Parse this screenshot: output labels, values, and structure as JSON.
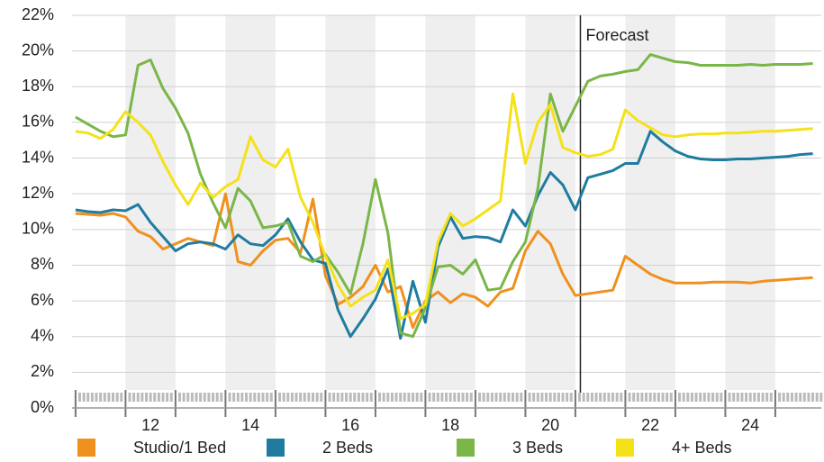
{
  "chart_data": {
    "type": "line",
    "x": [
      11,
      11.25,
      11.5,
      11.75,
      12,
      12.25,
      12.5,
      12.75,
      13,
      13.25,
      13.5,
      13.75,
      14,
      14.25,
      14.5,
      14.75,
      15,
      15.25,
      15.5,
      15.75,
      16,
      16.25,
      16.5,
      16.75,
      17,
      17.25,
      17.5,
      17.75,
      18,
      18.25,
      18.5,
      18.75,
      19,
      19.25,
      19.5,
      19.75,
      20,
      20.25,
      20.5,
      20.75,
      21,
      21.25,
      21.5,
      21.75,
      22,
      22.25,
      22.5,
      22.75,
      23,
      23.25,
      23.5,
      23.75,
      24,
      24.25,
      24.5,
      24.75,
      25,
      25.25,
      25.5,
      25.75
    ],
    "series": [
      {
        "name": "Studio/1 Bed",
        "color": "#f0901e",
        "values": [
          10.9,
          10.85,
          10.8,
          10.9,
          10.7,
          9.9,
          9.6,
          8.9,
          9.2,
          9.5,
          9.3,
          9.1,
          12.0,
          8.2,
          8.0,
          8.8,
          9.4,
          9.5,
          8.7,
          11.7,
          7.4,
          5.8,
          6.2,
          6.8,
          8.0,
          6.5,
          6.8,
          4.5,
          6.0,
          6.5,
          5.9,
          6.4,
          6.2,
          5.7,
          6.5,
          6.7,
          8.8,
          9.9,
          9.2,
          7.5,
          6.3,
          6.4,
          6.5,
          6.6,
          8.5,
          8.0,
          7.5,
          7.2,
          7.0,
          7.0,
          7.0,
          7.05,
          7.05,
          7.05,
          7.0,
          7.1,
          7.15,
          7.2,
          7.25,
          7.3
        ]
      },
      {
        "name": "2 Beds",
        "color": "#1f7ca0",
        "values": [
          11.1,
          11.0,
          10.95,
          11.1,
          11.05,
          11.4,
          10.4,
          9.6,
          8.8,
          9.2,
          9.3,
          9.2,
          8.9,
          9.7,
          9.2,
          9.1,
          9.7,
          10.6,
          9.3,
          8.3,
          8.1,
          5.5,
          4.0,
          5.0,
          6.1,
          7.8,
          3.9,
          7.1,
          4.8,
          9.0,
          10.7,
          9.5,
          9.6,
          9.55,
          9.3,
          11.1,
          10.2,
          11.9,
          13.2,
          12.5,
          11.1,
          12.9,
          13.1,
          13.3,
          13.7,
          13.7,
          15.5,
          14.9,
          14.4,
          14.1,
          13.95,
          13.9,
          13.9,
          13.95,
          13.95,
          14.0,
          14.05,
          14.1,
          14.2,
          14.25
        ]
      },
      {
        "name": "3 Beds",
        "color": "#7ab648",
        "values": [
          16.3,
          15.9,
          15.5,
          15.2,
          15.3,
          19.2,
          19.5,
          17.9,
          16.8,
          15.4,
          13.1,
          11.5,
          10.1,
          12.3,
          11.6,
          10.1,
          10.2,
          10.4,
          8.5,
          8.2,
          8.6,
          7.6,
          6.4,
          9.2,
          12.8,
          9.8,
          4.2,
          4.0,
          5.6,
          7.9,
          8.0,
          7.5,
          8.3,
          6.6,
          6.7,
          8.2,
          9.3,
          12.3,
          17.6,
          15.5,
          16.9,
          18.3,
          18.6,
          18.7,
          18.85,
          18.95,
          19.8,
          19.6,
          19.4,
          19.35,
          19.2,
          19.2,
          19.2,
          19.2,
          19.25,
          19.2,
          19.25,
          19.25,
          19.25,
          19.3
        ]
      },
      {
        "name": "4+ Beds",
        "color": "#f5e11a",
        "values": [
          15.5,
          15.4,
          15.1,
          15.6,
          16.6,
          16.0,
          15.3,
          13.8,
          12.5,
          11.4,
          12.6,
          11.8,
          12.4,
          12.8,
          15.2,
          13.9,
          13.5,
          14.5,
          11.8,
          10.4,
          8.5,
          6.9,
          5.7,
          6.2,
          6.6,
          8.3,
          5.0,
          5.3,
          5.8,
          9.3,
          10.9,
          10.2,
          10.6,
          11.1,
          11.6,
          17.6,
          13.7,
          16.0,
          17.0,
          14.6,
          14.3,
          14.1,
          14.2,
          14.5,
          16.7,
          16.1,
          15.7,
          15.3,
          15.2,
          15.3,
          15.35,
          15.35,
          15.4,
          15.4,
          15.45,
          15.5,
          15.5,
          15.55,
          15.6,
          15.65
        ]
      }
    ],
    "xlim": [
      10.93,
      25.92
    ],
    "xticks": [
      {
        "value": 12.5,
        "label": "12"
      },
      {
        "value": 14.5,
        "label": "14"
      },
      {
        "value": 16.5,
        "label": "16"
      },
      {
        "value": 18.5,
        "label": "18"
      },
      {
        "value": 20.5,
        "label": "20"
      },
      {
        "value": 22.5,
        "label": "22"
      },
      {
        "value": 24.5,
        "label": "24"
      }
    ],
    "ylim": [
      0,
      22
    ],
    "yticks": [
      {
        "value": 0,
        "label": "0%"
      },
      {
        "value": 2,
        "label": "2%"
      },
      {
        "value": 4,
        "label": "4%"
      },
      {
        "value": 6,
        "label": "6%"
      },
      {
        "value": 8,
        "label": "8%"
      },
      {
        "value": 10,
        "label": "10%"
      },
      {
        "value": 12,
        "label": "12%"
      },
      {
        "value": 14,
        "label": "14%"
      },
      {
        "value": 16,
        "label": "16%"
      },
      {
        "value": 18,
        "label": "18%"
      },
      {
        "value": 20,
        "label": "20%"
      },
      {
        "value": 22,
        "label": "22%"
      }
    ],
    "grid": true,
    "forecast": {
      "x": 21.1,
      "label": "Forecast"
    },
    "legend": "bottom"
  }
}
